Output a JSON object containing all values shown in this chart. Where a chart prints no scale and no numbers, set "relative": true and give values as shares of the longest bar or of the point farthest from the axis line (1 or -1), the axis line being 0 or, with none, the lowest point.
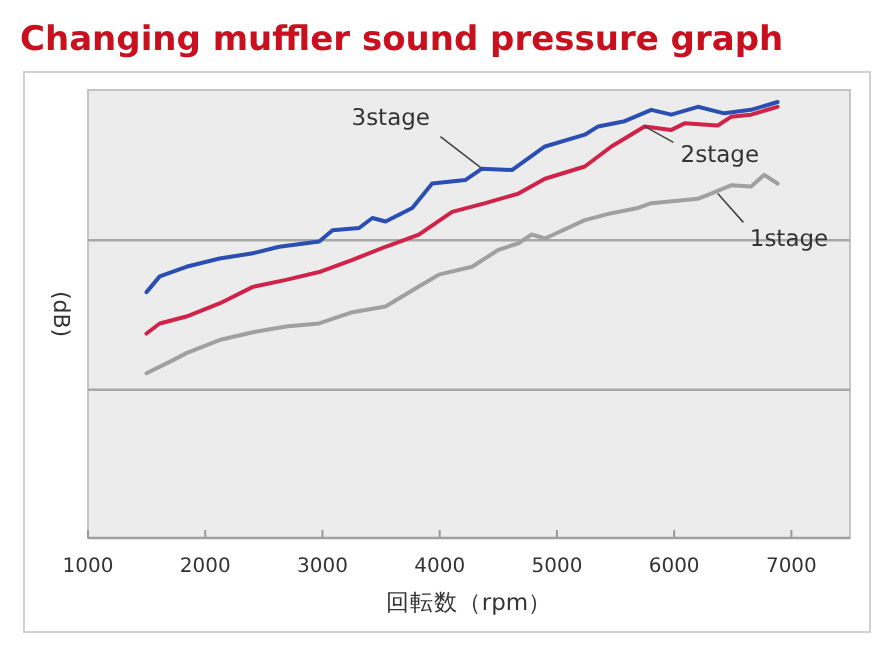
{
  "chart_data": {
    "type": "line",
    "title": "Changing muffler sound pressure graph",
    "xlabel": "回転数（rpm）",
    "ylabel": "(dB)",
    "relative": true,
    "xlim": [
      1000,
      7500
    ],
    "xticks": [
      1000,
      2000,
      3000,
      4000,
      5000,
      6000,
      7000
    ],
    "ref_lines": [
      {
        "axis": "y",
        "value": 0.34,
        "color": "#a8a8a8"
      },
      {
        "axis": "y",
        "value": 0.683,
        "color": "#a8a8a8"
      }
    ],
    "marker": "none",
    "line_style": "solid",
    "series": [
      {
        "color": "#a0a0a0",
        "x": [
          1499,
          1726,
          1839,
          2122,
          2406,
          2689,
          2972,
          3256,
          3538,
          3822,
          3992,
          4276,
          4502,
          4672,
          4785,
          4898,
          5238,
          5465,
          5692,
          5805,
          6202,
          6315,
          6485,
          6656,
          6769,
          6882
        ],
        "values": [
          0.378,
          0.408,
          0.424,
          0.454,
          0.472,
          0.485,
          0.492,
          0.518,
          0.531,
          0.577,
          0.604,
          0.622,
          0.661,
          0.676,
          0.696,
          0.687,
          0.729,
          0.745,
          0.757,
          0.768,
          0.778,
          0.79,
          0.809,
          0.806,
          0.833,
          0.813
        ]
      },
      {
        "color": "#d0234a",
        "x": [
          1499,
          1612,
          1839,
          2122,
          2406,
          2689,
          2972,
          3256,
          3538,
          3822,
          4106,
          4389,
          4672,
          4898,
          5238,
          5465,
          5748,
          5976,
          6089,
          6372,
          6485,
          6656,
          6882
        ],
        "values": [
          0.469,
          0.492,
          0.508,
          0.538,
          0.576,
          0.592,
          0.61,
          0.638,
          0.668,
          0.696,
          0.748,
          0.768,
          0.79,
          0.824,
          0.852,
          0.898,
          0.944,
          0.936,
          0.951,
          0.946,
          0.966,
          0.971,
          0.989
        ]
      },
      {
        "color": "#2a4fb0",
        "x": [
          1499,
          1612,
          1839,
          2122,
          2406,
          2632,
          2972,
          3086,
          3312,
          3426,
          3538,
          3766,
          3936,
          4218,
          4361,
          4616,
          4898,
          5238,
          5352,
          5578,
          5805,
          5976,
          6202,
          6428,
          6656,
          6882
        ],
        "values": [
          0.564,
          0.6,
          0.622,
          0.641,
          0.653,
          0.668,
          0.68,
          0.706,
          0.711,
          0.734,
          0.726,
          0.757,
          0.813,
          0.821,
          0.847,
          0.844,
          0.898,
          0.925,
          0.944,
          0.956,
          0.982,
          0.971,
          0.989,
          0.974,
          0.982,
          1
        ]
      }
    ],
    "annotations": [
      {
        "text": "3stage",
        "x": 4361,
        "y": 0.847
      },
      {
        "text": "2stage",
        "x": 5748,
        "y": 0.944
      },
      {
        "text": "1stage",
        "x": 6372,
        "y": 0.79
      }
    ]
  }
}
